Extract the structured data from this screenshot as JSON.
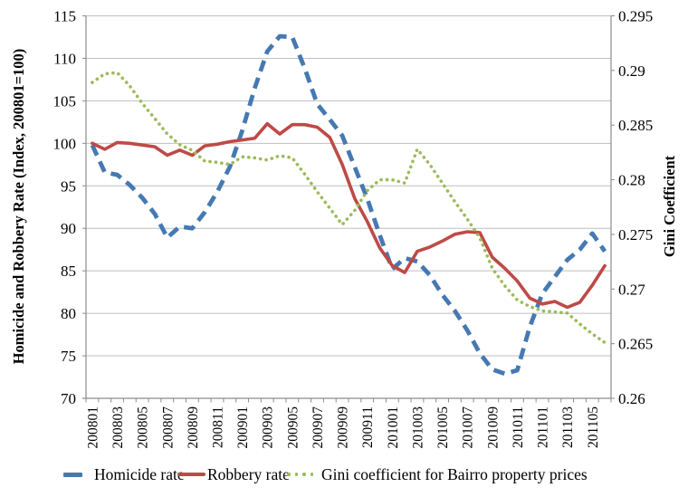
{
  "chart_data": {
    "type": "line",
    "title": "",
    "x": [
      "200801",
      "200802",
      "200803",
      "200804",
      "200805",
      "200806",
      "200807",
      "200808",
      "200809",
      "200810",
      "200811",
      "200812",
      "200901",
      "200902",
      "200903",
      "200904",
      "200905",
      "200906",
      "200907",
      "200908",
      "200909",
      "200910",
      "200911",
      "200912",
      "201001",
      "201002",
      "201003",
      "201004",
      "201005",
      "201006",
      "201007",
      "201008",
      "201009",
      "201010",
      "201011",
      "201012",
      "201101",
      "201102",
      "201103",
      "201104",
      "201105",
      "201106"
    ],
    "x_tick_every": 2,
    "grid": true,
    "legend_position": "bottom",
    "grid_color": "#BFBFBF",
    "axis_color": "#8C8C8C",
    "text_color": "#000000",
    "left_axis": {
      "label": "Homicide and Robbery Rate (Index, 200801=100)",
      "min": 70,
      "max": 115,
      "step": 5
    },
    "right_axis": {
      "label": "Gini Coefficient",
      "min": 0.26,
      "max": 0.295,
      "step": 0.005
    },
    "series": [
      {
        "name": "Homicide rate",
        "axis": "left",
        "style": "dashed",
        "color": "#4679B2",
        "values": [
          99.8,
          96.6,
          96.3,
          95.1,
          93.6,
          91.7,
          88.9,
          90.2,
          90.0,
          91.9,
          94.3,
          97.2,
          101.5,
          106.5,
          110.8,
          112.6,
          112.5,
          108.8,
          104.6,
          102.8,
          100.9,
          97.2,
          93.5,
          89.2,
          85.2,
          86.5,
          86.1,
          84.5,
          82.2,
          80.3,
          78.0,
          75.3,
          73.4,
          72.9,
          73.3,
          78.4,
          82.3,
          84.3,
          86.3,
          87.5,
          89.4,
          87.3
        ]
      },
      {
        "name": "Robbery rate",
        "axis": "left",
        "style": "solid",
        "color": "#BE4A47",
        "values": [
          100.0,
          99.3,
          100.1,
          100.0,
          99.8,
          99.6,
          98.6,
          99.2,
          98.6,
          99.7,
          99.9,
          100.2,
          100.4,
          100.6,
          102.3,
          101.1,
          102.2,
          102.2,
          101.9,
          100.7,
          97.5,
          93.5,
          90.8,
          87.7,
          85.6,
          84.8,
          87.3,
          87.8,
          88.5,
          89.3,
          89.6,
          89.5,
          86.6,
          85.3,
          83.8,
          81.8,
          81.1,
          81.4,
          80.7,
          81.3,
          83.3,
          85.6
        ]
      },
      {
        "name": "Gini coefficient for Bairro property prices",
        "axis": "right",
        "style": "dotted",
        "color": "#9BBB59",
        "values": [
          0.2889,
          0.2897,
          0.2898,
          0.2886,
          0.287,
          0.2856,
          0.2842,
          0.2832,
          0.2827,
          0.2817,
          0.2816,
          0.2814,
          0.2821,
          0.282,
          0.2818,
          0.2822,
          0.282,
          0.2805,
          0.2789,
          0.2774,
          0.2759,
          0.2772,
          0.279,
          0.28,
          0.28,
          0.2797,
          0.2828,
          0.2814,
          0.2797,
          0.278,
          0.2764,
          0.2747,
          0.2719,
          0.2703,
          0.269,
          0.2684,
          0.268,
          0.2679,
          0.2678,
          0.2668,
          0.2659,
          0.2651
        ]
      }
    ]
  }
}
